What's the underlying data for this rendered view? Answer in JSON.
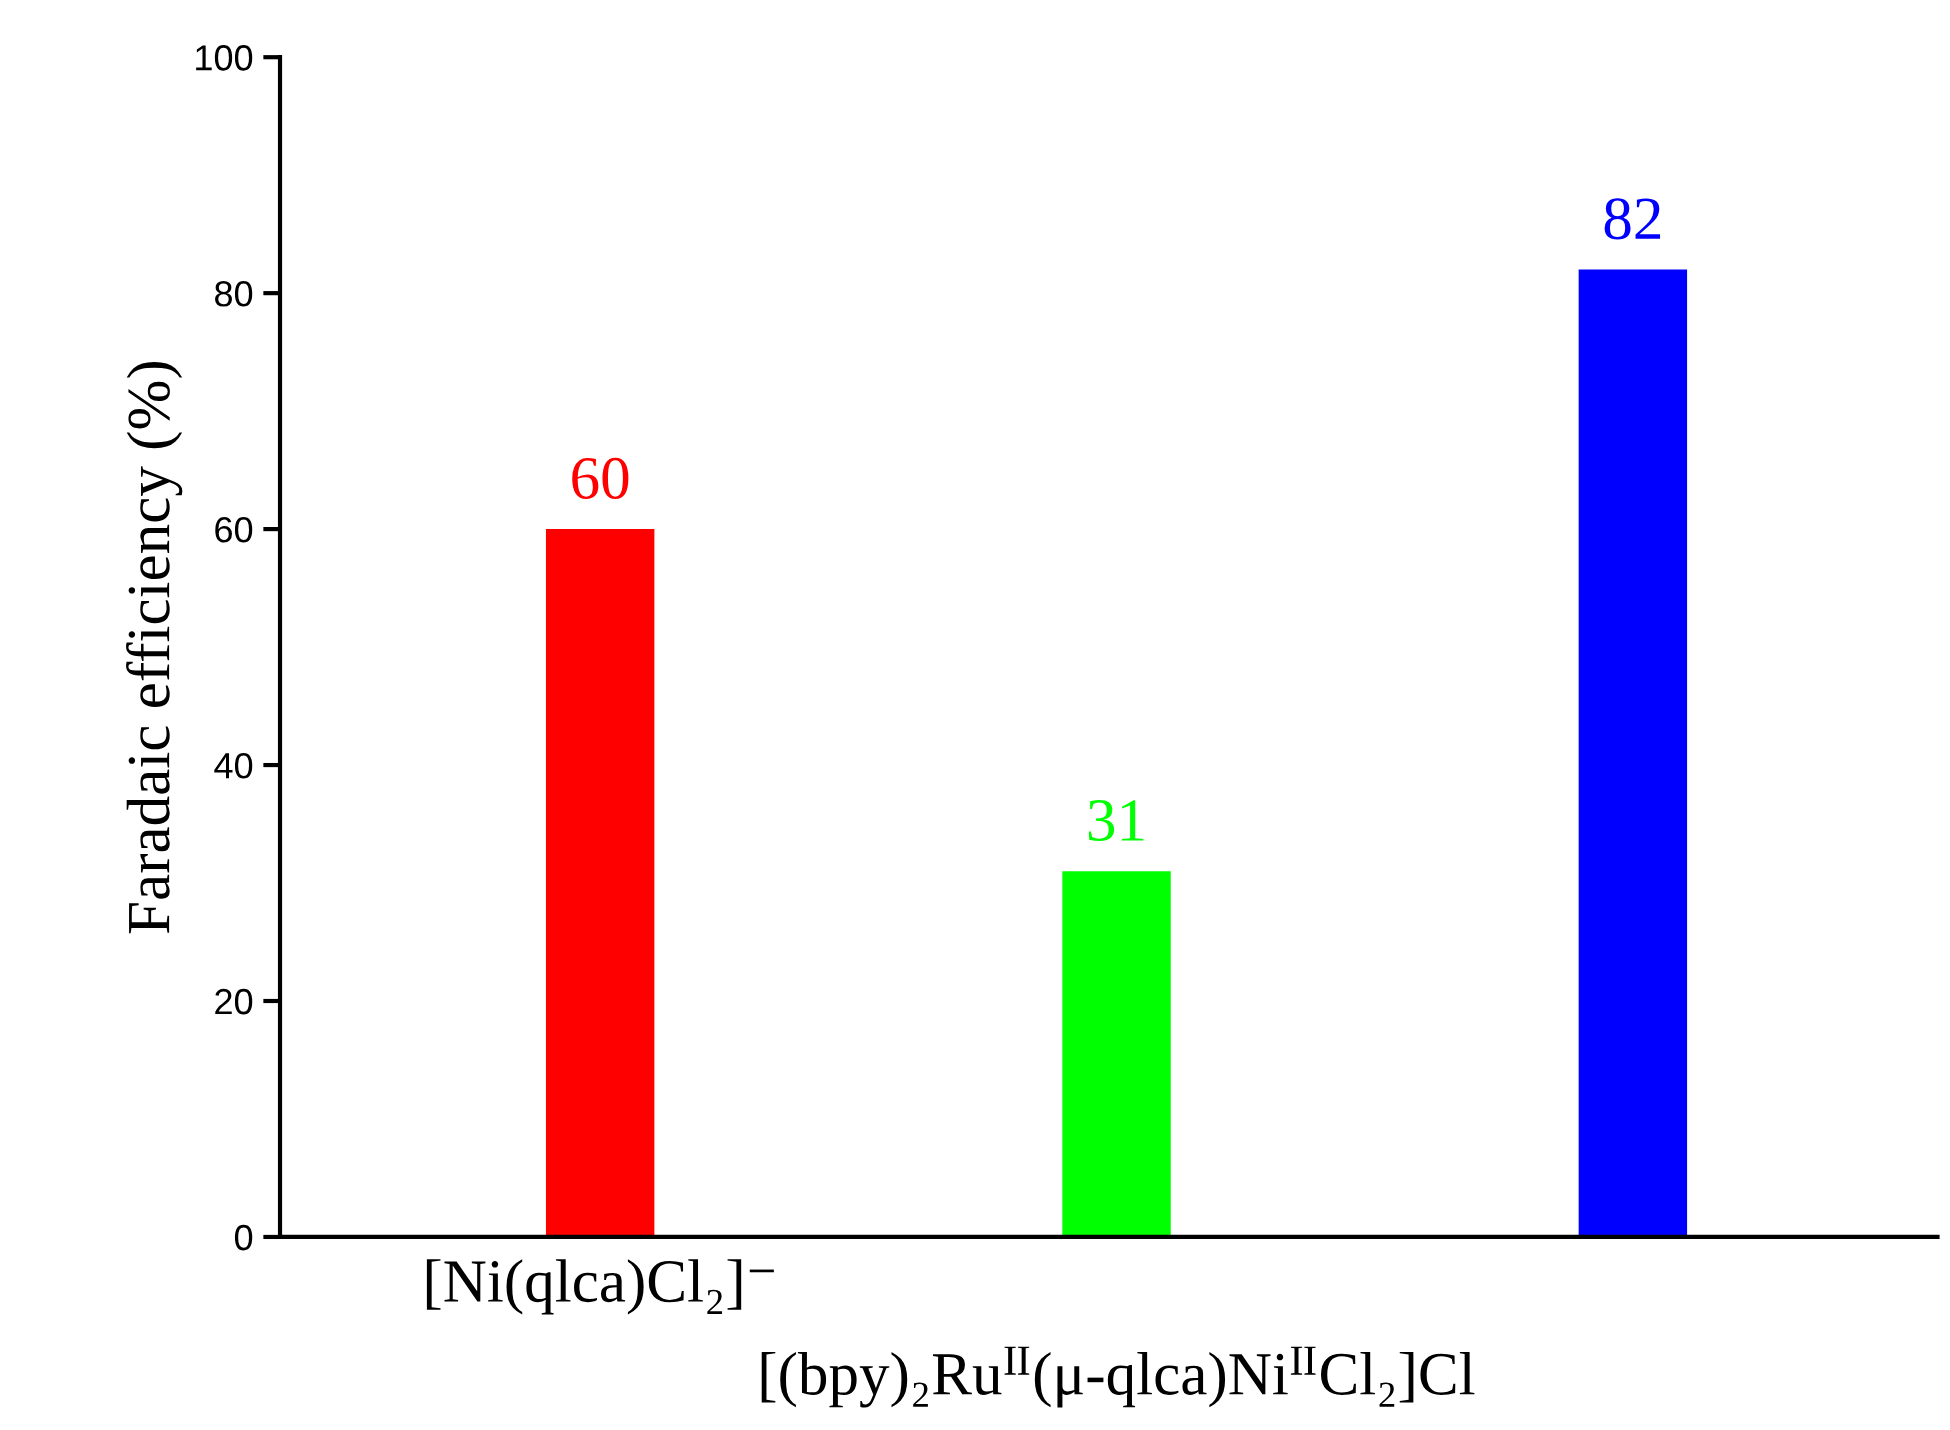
{
  "chart_data": {
    "type": "bar",
    "ylabel": "Faradaic efficiency (%)",
    "categories": [
      "[Ni(qlca)Cl₂]⁻",
      "[(bpy)₂Ru$^{II}$(μ-qlca)Ni$^{II}$Cl₂]Cl",
      null
    ],
    "values": [
      60,
      31,
      82
    ],
    "colors": [
      "#ff0000",
      "#00ff00",
      "#0000ff"
    ],
    "ylim": [
      0,
      100
    ],
    "yticks": [
      0,
      20,
      40,
      60,
      80,
      100
    ],
    "data_labels": true,
    "grid": false,
    "legend": false
  }
}
